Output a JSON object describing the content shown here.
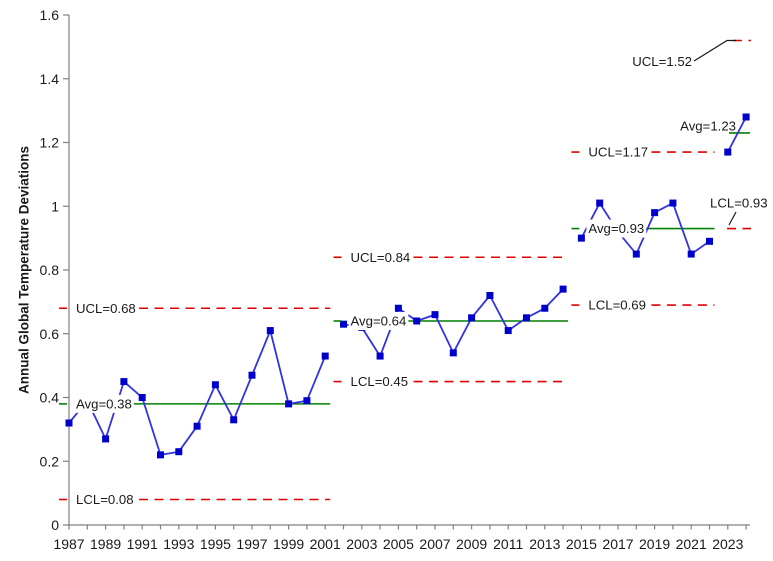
{
  "chart_data": {
    "type": "line",
    "title": "",
    "ylabel": "Annual Global Temperature Deviations",
    "xlabel": "",
    "ylim": [
      0,
      1.6
    ],
    "grid": false,
    "legend": "none",
    "ytick_values": [
      0,
      0.2,
      0.4,
      0.6,
      0.8,
      1.0,
      1.2,
      1.4,
      1.6
    ],
    "ytick_labels": [
      "0",
      "0.2",
      "0.4",
      "0.6",
      "0.8",
      "1",
      "1.2",
      "1.4",
      "1.6"
    ],
    "x_range": [
      1987,
      2024
    ],
    "xtick_labeled_years": [
      1987,
      1989,
      1991,
      1993,
      1995,
      1997,
      1999,
      2001,
      2003,
      2005,
      2007,
      2009,
      2011,
      2013,
      2015,
      2017,
      2019,
      2021,
      2023
    ],
    "colors": {
      "series_line": "#3333E0",
      "series_marker": "#0000CD",
      "control_limit": "#E00000",
      "average_line": "#008000",
      "axis": "#808080",
      "text": "#1A1A1A",
      "callout_leader": "#1A1A1A",
      "background": "#FFFFFF"
    },
    "phases": [
      {
        "name": "phase-1",
        "label_style": "inline",
        "years": [
          1987,
          1988,
          1989,
          1990,
          1991,
          1992,
          1993,
          1994,
          1995,
          1996,
          1997,
          1998,
          1999,
          2000,
          2001
        ],
        "values": [
          0.32,
          0.39,
          0.27,
          0.45,
          0.4,
          0.22,
          0.23,
          0.31,
          0.44,
          0.33,
          0.47,
          0.61,
          0.38,
          0.39,
          0.53
        ],
        "ucl": 0.68,
        "avg": 0.38,
        "lcl": 0.08,
        "ucl_label": "UCL=0.68",
        "avg_label": "Avg=0.38",
        "lcl_label": "LCL=0.08"
      },
      {
        "name": "phase-2",
        "label_style": "inline",
        "years": [
          2002,
          2003,
          2004,
          2005,
          2006,
          2007,
          2008,
          2009,
          2010,
          2011,
          2012,
          2013,
          2014
        ],
        "values": [
          0.63,
          0.62,
          0.53,
          0.68,
          0.64,
          0.66,
          0.54,
          0.65,
          0.72,
          0.61,
          0.65,
          0.68,
          0.74
        ],
        "ucl": 0.84,
        "avg": 0.64,
        "lcl": 0.45,
        "ucl_label": "UCL=0.84",
        "avg_label": "Avg=0.64",
        "lcl_label": "LCL=0.45"
      },
      {
        "name": "phase-3",
        "label_style": "inline",
        "years": [
          2015,
          2016,
          2017,
          2018,
          2019,
          2020,
          2021,
          2022
        ],
        "values": [
          0.9,
          1.01,
          0.92,
          0.85,
          0.98,
          1.01,
          0.85,
          0.89
        ],
        "ucl": 1.17,
        "avg": 0.93,
        "lcl": 0.69,
        "ucl_label": "UCL=1.17",
        "avg_label": "Avg=0.93",
        "lcl_label": "LCL=0.69"
      },
      {
        "name": "phase-4",
        "label_style": "callout",
        "years": [
          2023,
          2024
        ],
        "values": [
          1.17,
          1.28
        ],
        "ucl": 1.52,
        "avg": 1.23,
        "lcl": 0.93,
        "ucl_label": "UCL=1.52",
        "avg_label": "Avg=1.23",
        "lcl_label": "LCL=0.93"
      }
    ]
  }
}
